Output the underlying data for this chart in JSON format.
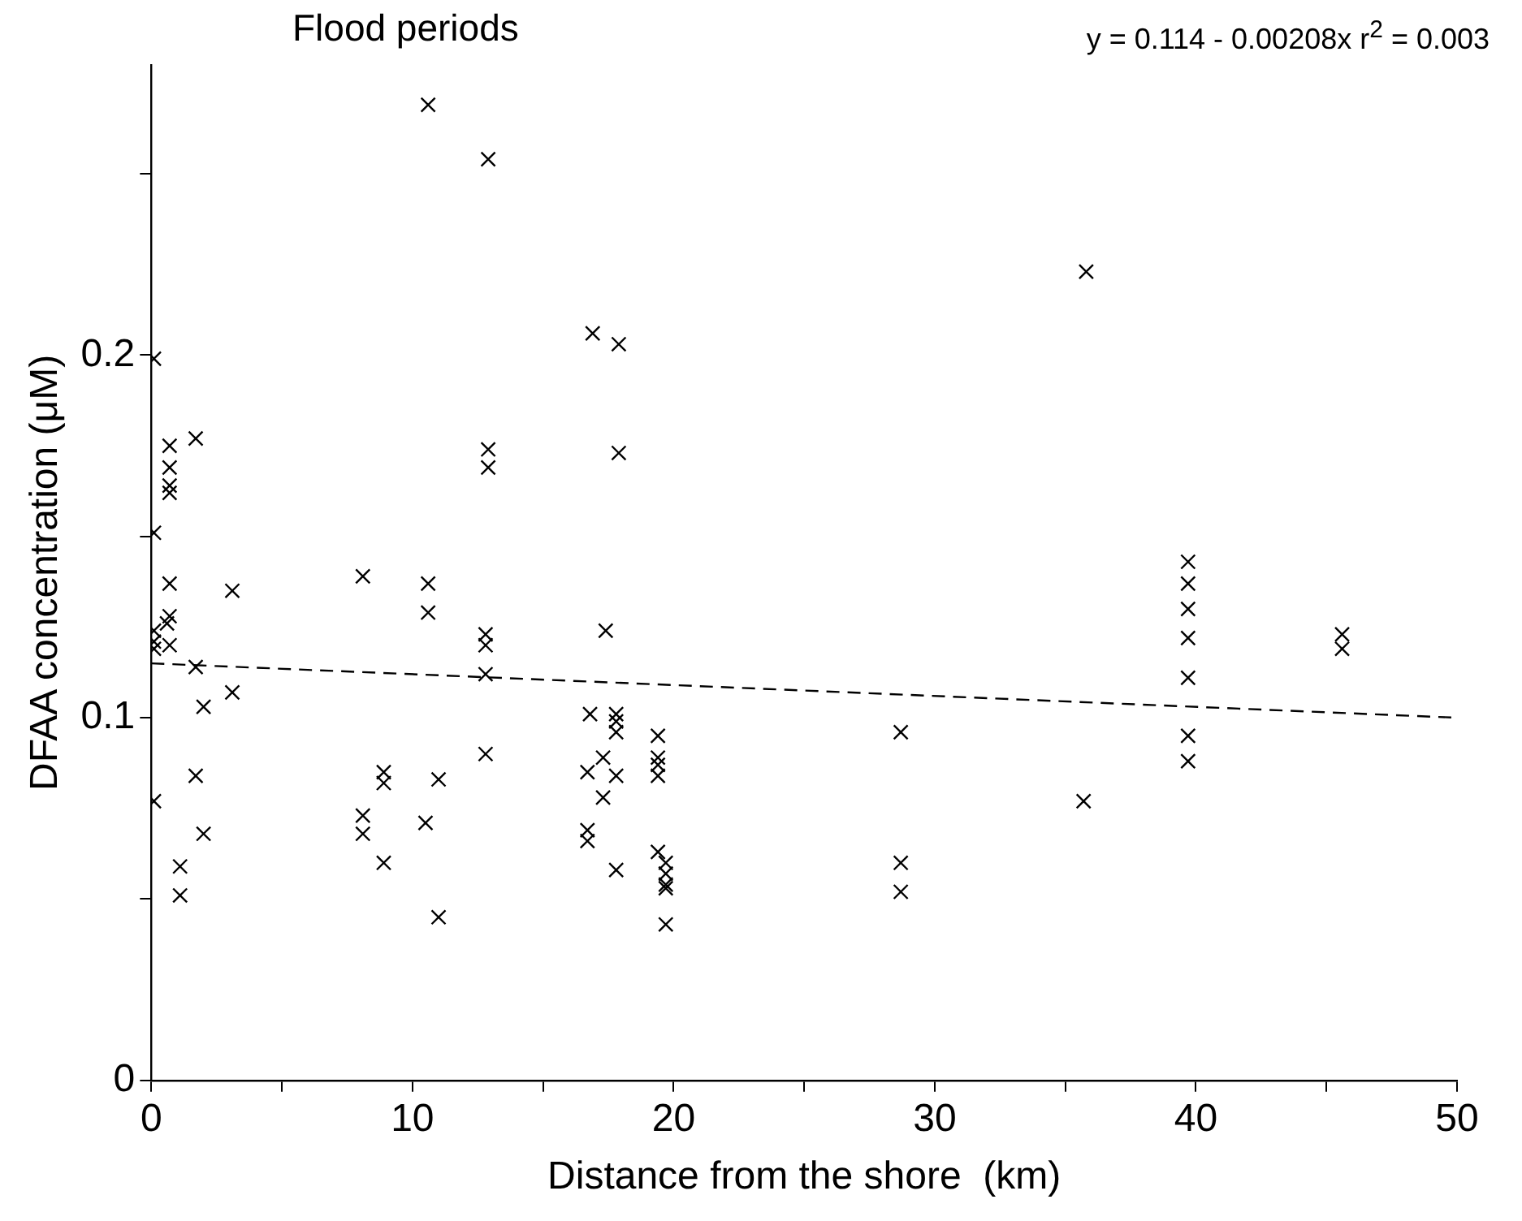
{
  "chart_data": {
    "type": "scatter",
    "title": "Flood periods",
    "xlabel": "Distance from the shore  (km)",
    "ylabel": "DFAA concentration (μM)",
    "annotations": [
      "y = 0.114 - 0.00208x   r$^{2}$ = 0.003"
    ],
    "xlim": [
      0,
      50
    ],
    "xticks": [
      0,
      {
        "value": 5,
        "label": null
      },
      10,
      {
        "value": 15,
        "label": null
      },
      20,
      {
        "value": 25,
        "label": null
      },
      30,
      {
        "value": 35,
        "label": null
      },
      40,
      {
        "value": 45,
        "label": null
      },
      50
    ],
    "ylim": [
      0,
      0.28
    ],
    "yticks": [
      0,
      {
        "value": 0.05,
        "label": null
      },
      0.1,
      {
        "value": 0.15,
        "label": null
      },
      0.2,
      {
        "value": 0.25,
        "label": null
      }
    ],
    "grid": false,
    "marker": "cross",
    "series": [
      {
        "color": "#000000",
        "x": [
          10.6,
          12.9,
          0.1,
          16.9,
          17.9,
          1.7,
          0.7,
          0.7,
          0.7,
          0.7,
          12.9,
          12.9,
          17.9,
          0.1,
          0.7,
          3.1,
          8.1,
          10.6,
          10.6,
          0.7,
          0.6,
          0.1,
          0.7,
          0.1,
          0.1,
          12.8,
          12.8,
          12.8,
          17.4,
          1.7,
          3.1,
          2.0,
          16.8,
          17.8,
          17.8,
          17.8,
          19.4,
          19.4,
          19.4,
          19.4,
          17.3,
          16.7,
          17.8,
          17.3,
          12.8,
          1.7,
          8.9,
          8.9,
          11.0,
          0.1,
          8.1,
          8.1,
          10.5,
          16.7,
          16.7,
          2.0,
          1.1,
          1.1,
          8.9,
          11.0,
          17.8,
          19.4,
          19.7,
          19.7,
          19.7,
          19.7,
          19.7,
          35.8,
          39.7,
          39.7,
          39.7,
          39.7,
          45.6,
          45.6,
          39.7,
          28.7,
          39.7,
          39.7,
          35.7,
          28.7,
          28.7
        ],
        "values": [
          0.269,
          0.254,
          0.199,
          0.206,
          0.203,
          0.177,
          0.175,
          0.169,
          0.164,
          0.162,
          0.174,
          0.169,
          0.173,
          0.151,
          0.137,
          0.135,
          0.139,
          0.137,
          0.129,
          0.128,
          0.126,
          0.124,
          0.12,
          0.121,
          0.119,
          0.123,
          0.12,
          0.112,
          0.124,
          0.114,
          0.107,
          0.103,
          0.101,
          0.101,
          0.099,
          0.096,
          0.095,
          0.089,
          0.087,
          0.084,
          0.089,
          0.085,
          0.084,
          0.078,
          0.09,
          0.084,
          0.085,
          0.082,
          0.083,
          0.077,
          0.073,
          0.068,
          0.071,
          0.069,
          0.066,
          0.068,
          0.059,
          0.051,
          0.06,
          0.045,
          0.058,
          0.063,
          0.06,
          0.057,
          0.054,
          0.053,
          0.043,
          0.223,
          0.143,
          0.137,
          0.13,
          0.122,
          0.123,
          0.119,
          0.111,
          0.096,
          0.095,
          0.088,
          0.077,
          0.06,
          0.052
        ]
      },
      {
        "type": "line",
        "color": "#000000",
        "marker": "none",
        "line_style": "dashed",
        "x": [
          0,
          50
        ],
        "values": [
          0.115,
          0.1
        ]
      }
    ]
  }
}
